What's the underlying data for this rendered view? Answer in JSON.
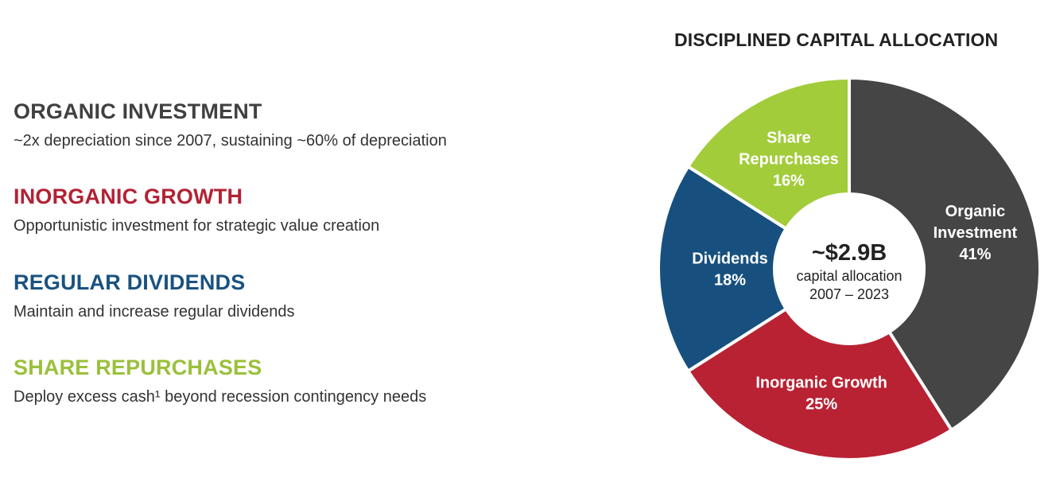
{
  "sections": [
    {
      "heading": "ORGANIC INVESTMENT",
      "text": "~2x depreciation since 2007, sustaining ~60% of depreciation",
      "color": "#404040"
    },
    {
      "heading": "INORGANIC GROWTH",
      "text": "Opportunistic investment for strategic value creation",
      "color": "#B22234"
    },
    {
      "heading": "REGULAR DIVIDENDS",
      "text": "Maintain and increase regular dividends",
      "color": "#1A5280"
    },
    {
      "heading": "SHARE REPURCHASES",
      "text": "Deploy excess cash¹ beyond recession contingency needs",
      "color": "#9BC03B"
    }
  ],
  "chart_data": {
    "type": "pie",
    "title": "DISCIPLINED CAPITAL ALLOCATION",
    "donut": true,
    "center": {
      "value": "~$2.9B",
      "line1": "capital allocation",
      "line2": "2007 – 2023"
    },
    "slices": [
      {
        "label_lines": [
          "Organic",
          "Investment"
        ],
        "value": 41,
        "value_label": "41%",
        "color": "#454545"
      },
      {
        "label_lines": [
          "Inorganic Growth"
        ],
        "value": 25,
        "value_label": "25%",
        "color": "#B82233"
      },
      {
        "label_lines": [
          "Dividends"
        ],
        "value": 18,
        "value_label": "18%",
        "color": "#17507E"
      },
      {
        "label_lines": [
          "Share",
          "Repurchases"
        ],
        "value": 16,
        "value_label": "16%",
        "color": "#A2CC3A"
      }
    ]
  }
}
